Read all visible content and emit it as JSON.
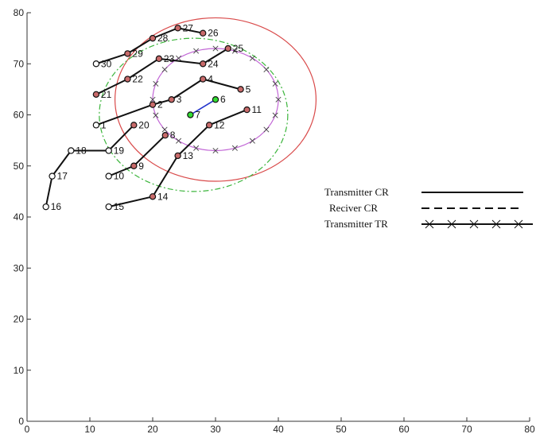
{
  "chart_data": {
    "type": "scatter",
    "xlim": [
      0,
      80
    ],
    "ylim": [
      0,
      80
    ],
    "xticks": [
      0,
      10,
      20,
      30,
      40,
      50,
      60,
      70,
      80
    ],
    "yticks": [
      0,
      10,
      20,
      30,
      40,
      50,
      60,
      70,
      80
    ],
    "grid": false,
    "legend_position": "right",
    "legend": [
      {
        "label": "Transmitter CR",
        "style": "solid"
      },
      {
        "label": "Reciver CR",
        "style": "dashed"
      },
      {
        "label": "Transmitter TR",
        "style": "x-marker"
      }
    ],
    "nodes": [
      {
        "id": "1",
        "x": 11,
        "y": 58
      },
      {
        "id": "2",
        "x": 20,
        "y": 62
      },
      {
        "id": "3",
        "x": 23,
        "y": 63
      },
      {
        "id": "4",
        "x": 28,
        "y": 67
      },
      {
        "id": "5",
        "x": 34,
        "y": 65
      },
      {
        "id": "6",
        "x": 30,
        "y": 63
      },
      {
        "id": "7",
        "x": 26,
        "y": 60
      },
      {
        "id": "8",
        "x": 22,
        "y": 56
      },
      {
        "id": "9",
        "x": 17,
        "y": 50
      },
      {
        "id": "10",
        "x": 13,
        "y": 48
      },
      {
        "id": "11",
        "x": 35,
        "y": 61
      },
      {
        "id": "12",
        "x": 29,
        "y": 58
      },
      {
        "id": "13",
        "x": 24,
        "y": 52
      },
      {
        "id": "14",
        "x": 20,
        "y": 44
      },
      {
        "id": "15",
        "x": 13,
        "y": 42
      },
      {
        "id": "16",
        "x": 3,
        "y": 42
      },
      {
        "id": "17",
        "x": 4,
        "y": 48
      },
      {
        "id": "18",
        "x": 7,
        "y": 53
      },
      {
        "id": "19",
        "x": 13,
        "y": 53
      },
      {
        "id": "20",
        "x": 17,
        "y": 58
      },
      {
        "id": "21",
        "x": 11,
        "y": 64
      },
      {
        "id": "22",
        "x": 16,
        "y": 67
      },
      {
        "id": "23",
        "x": 21,
        "y": 71
      },
      {
        "id": "24",
        "x": 28,
        "y": 70
      },
      {
        "id": "25",
        "x": 32,
        "y": 73
      },
      {
        "id": "26",
        "x": 28,
        "y": 76
      },
      {
        "id": "27",
        "x": 24,
        "y": 77
      },
      {
        "id": "28",
        "x": 20,
        "y": 75
      },
      {
        "id": "29",
        "x": 16,
        "y": 72
      },
      {
        "id": "30",
        "x": 11,
        "y": 70
      }
    ],
    "chains": [
      [
        "1",
        "2",
        "3",
        "4",
        "5"
      ],
      [
        "7",
        "6"
      ],
      [
        "10",
        "9",
        "8"
      ],
      [
        "13",
        "12",
        "11"
      ],
      [
        "15",
        "14",
        "13"
      ],
      [
        "16",
        "17",
        "18",
        "19",
        "20"
      ],
      [
        "21",
        "22",
        "23",
        "24",
        "25"
      ],
      [
        "30",
        "29",
        "28",
        "27",
        "26"
      ]
    ],
    "highlight_nodes": [
      "6",
      "7"
    ],
    "circles": [
      {
        "name": "Transmitter CR",
        "cx": 30,
        "cy": 63,
        "r": 16,
        "color": "#d94a4a",
        "style": "solid"
      },
      {
        "name": "Reciver CR",
        "cx": 26.5,
        "cy": 60,
        "r": 15,
        "color": "#3cb53c",
        "style": "dashed"
      },
      {
        "name": "Transmitter TR",
        "cx": 30,
        "cy": 63,
        "r": 10,
        "color": "#c266d6",
        "style": "x-marker"
      }
    ]
  }
}
